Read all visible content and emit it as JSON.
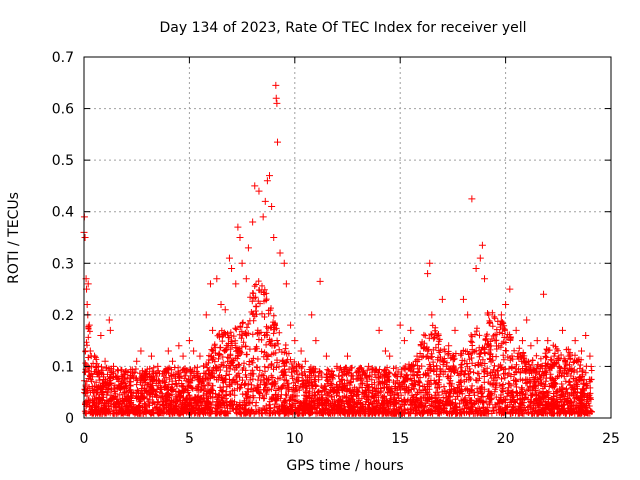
{
  "chart_data": {
    "type": "scatter",
    "title": "Day 134 of 2023, Rate Of TEC Index for receiver yell",
    "xlabel": "GPS time / hours",
    "ylabel": "ROTI / TECUs",
    "xlim": [
      0,
      25
    ],
    "ylim": [
      0,
      0.7
    ],
    "xticks": [
      "0",
      "5",
      "10",
      "15",
      "20",
      "25"
    ],
    "yticks": [
      "0",
      "0.1",
      "0.2",
      "0.3",
      "0.4",
      "0.5",
      "0.6",
      "0.7"
    ],
    "grid": true,
    "marker": "+",
    "color": "#ff0000",
    "series": [
      {
        "name": "ROTI",
        "points": [
          [
            0.0,
            0.36
          ],
          [
            0.02,
            0.39
          ],
          [
            0.05,
            0.35
          ],
          [
            0.1,
            0.27
          ],
          [
            0.12,
            0.25
          ],
          [
            0.15,
            0.22
          ],
          [
            0.18,
            0.2
          ],
          [
            0.2,
            0.26
          ],
          [
            0.25,
            0.18
          ],
          [
            0.3,
            0.13
          ],
          [
            0.35,
            0.1
          ],
          [
            0.4,
            0.08
          ],
          [
            0.5,
            0.12
          ],
          [
            0.6,
            0.09
          ],
          [
            0.7,
            0.06
          ],
          [
            0.8,
            0.16
          ],
          [
            1.0,
            0.11
          ],
          [
            1.1,
            0.07
          ],
          [
            1.2,
            0.19
          ],
          [
            1.25,
            0.17
          ],
          [
            1.4,
            0.1
          ],
          [
            1.6,
            0.08
          ],
          [
            1.8,
            0.06
          ],
          [
            2.0,
            0.09
          ],
          [
            2.2,
            0.07
          ],
          [
            2.5,
            0.11
          ],
          [
            2.7,
            0.13
          ],
          [
            3.0,
            0.08
          ],
          [
            3.2,
            0.12
          ],
          [
            3.5,
            0.1
          ],
          [
            3.8,
            0.09
          ],
          [
            4.0,
            0.13
          ],
          [
            4.2,
            0.11
          ],
          [
            4.5,
            0.14
          ],
          [
            4.7,
            0.12
          ],
          [
            5.0,
            0.15
          ],
          [
            5.2,
            0.13
          ],
          [
            5.5,
            0.12
          ],
          [
            5.8,
            0.2
          ],
          [
            6.0,
            0.26
          ],
          [
            6.1,
            0.17
          ],
          [
            6.3,
            0.27
          ],
          [
            6.5,
            0.22
          ],
          [
            6.7,
            0.21
          ],
          [
            6.9,
            0.31
          ],
          [
            7.0,
            0.29
          ],
          [
            7.2,
            0.26
          ],
          [
            7.3,
            0.37
          ],
          [
            7.4,
            0.35
          ],
          [
            7.5,
            0.3
          ],
          [
            7.7,
            0.27
          ],
          [
            7.8,
            0.33
          ],
          [
            8.0,
            0.38
          ],
          [
            8.1,
            0.45
          ],
          [
            8.3,
            0.44
          ],
          [
            8.5,
            0.39
          ],
          [
            8.6,
            0.42
          ],
          [
            8.7,
            0.46
          ],
          [
            8.8,
            0.47
          ],
          [
            8.9,
            0.41
          ],
          [
            9.0,
            0.35
          ],
          [
            9.1,
            0.645
          ],
          [
            9.12,
            0.62
          ],
          [
            9.15,
            0.61
          ],
          [
            9.18,
            0.535
          ],
          [
            9.3,
            0.32
          ],
          [
            9.5,
            0.3
          ],
          [
            9.6,
            0.26
          ],
          [
            9.8,
            0.18
          ],
          [
            10.0,
            0.15
          ],
          [
            10.3,
            0.13
          ],
          [
            10.5,
            0.11
          ],
          [
            10.8,
            0.2
          ],
          [
            11.0,
            0.15
          ],
          [
            11.2,
            0.265
          ],
          [
            11.5,
            0.12
          ],
          [
            12.0,
            0.1
          ],
          [
            12.5,
            0.12
          ],
          [
            13.0,
            0.09
          ],
          [
            13.5,
            0.1
          ],
          [
            14.0,
            0.17
          ],
          [
            14.3,
            0.13
          ],
          [
            14.5,
            0.12
          ],
          [
            15.0,
            0.18
          ],
          [
            15.2,
            0.15
          ],
          [
            15.5,
            0.17
          ],
          [
            15.8,
            0.12
          ],
          [
            16.0,
            0.14
          ],
          [
            16.3,
            0.28
          ],
          [
            16.4,
            0.3
          ],
          [
            16.5,
            0.2
          ],
          [
            16.8,
            0.16
          ],
          [
            17.0,
            0.23
          ],
          [
            17.3,
            0.14
          ],
          [
            17.6,
            0.17
          ],
          [
            18.0,
            0.23
          ],
          [
            18.2,
            0.2
          ],
          [
            18.4,
            0.425
          ],
          [
            18.6,
            0.29
          ],
          [
            18.8,
            0.31
          ],
          [
            18.9,
            0.335
          ],
          [
            19.0,
            0.27
          ],
          [
            19.2,
            0.2
          ],
          [
            19.5,
            0.15
          ],
          [
            19.8,
            0.2
          ],
          [
            20.0,
            0.22
          ],
          [
            20.2,
            0.25
          ],
          [
            20.5,
            0.17
          ],
          [
            20.8,
            0.15
          ],
          [
            21.0,
            0.19
          ],
          [
            21.2,
            0.14
          ],
          [
            21.5,
            0.15
          ],
          [
            21.8,
            0.24
          ],
          [
            22.0,
            0.15
          ],
          [
            22.3,
            0.12
          ],
          [
            22.7,
            0.17
          ],
          [
            23.0,
            0.12
          ],
          [
            23.3,
            0.15
          ],
          [
            23.6,
            0.13
          ],
          [
            23.8,
            0.16
          ],
          [
            24.0,
            0.12
          ]
        ]
      }
    ]
  }
}
